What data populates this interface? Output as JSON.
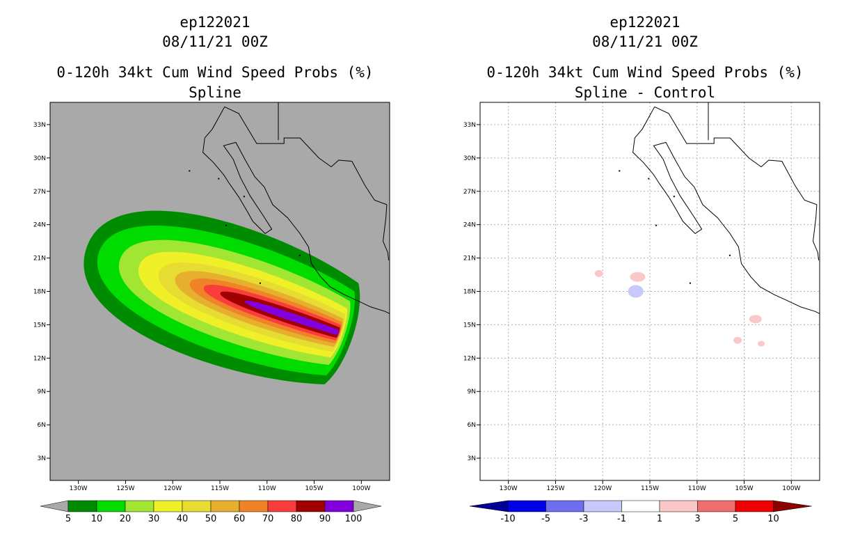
{
  "panels": [
    {
      "storm_id": "ep122021",
      "datetime": "08/11/21 00Z",
      "product": "0-120h 34kt Cum Wind Speed Probs (%)",
      "subtitle": "Spline",
      "background_color": "#A9A9A9",
      "colorbar": {
        "labels": [
          "5",
          "10",
          "20",
          "30",
          "40",
          "50",
          "60",
          "70",
          "80",
          "90",
          "100"
        ],
        "colors": [
          "#008C00",
          "#00DC00",
          "#A0E632",
          "#F0F028",
          "#E6DC32",
          "#E6AF2D",
          "#F08228",
          "#FA3C3C",
          "#A00000",
          "#8200DC"
        ],
        "end_color": "#A9A9A9"
      }
    },
    {
      "storm_id": "ep122021",
      "datetime": "08/11/21 00Z",
      "product": "0-120h 34kt Cum Wind Speed Probs (%)",
      "subtitle": "Spline - Control",
      "background_color": "#FFFFFF",
      "colorbar": {
        "labels": [
          "-10",
          "-5",
          "-3",
          "-1",
          "1",
          "3",
          "5",
          "10"
        ],
        "colors": [
          "#0000E6",
          "#6E6EF0",
          "#C8C8FA",
          "#FFFFFF",
          "#FAC8C8",
          "#F06E6E",
          "#F00000"
        ],
        "low_color": "#000096",
        "high_color": "#8C0000"
      }
    }
  ],
  "chart_data": [
    {
      "type": "heatmap",
      "title": "0-120h 34kt Cum Wind Speed Probs (%) - Spline",
      "x_ticks": [
        "130W",
        "125W",
        "120W",
        "115W",
        "110W",
        "105W",
        "100W"
      ],
      "y_ticks": [
        "3N",
        "6N",
        "9N",
        "12N",
        "15N",
        "18N",
        "21N",
        "24N",
        "27N",
        "30N",
        "33N"
      ],
      "xlim_deg_west": [
        133,
        97
      ],
      "ylim_deg_north": [
        1,
        35
      ],
      "field": "34-kt cumulative wind probability (%)",
      "contour_levels": [
        5,
        10,
        20,
        30,
        40,
        50,
        60,
        70,
        80,
        90,
        100
      ],
      "swath_axis": {
        "start": {
          "lon": 126,
          "lat": 21
        },
        "end": {
          "lon": 102.5,
          "lat": 14.3
        }
      },
      "max_probability_center": {
        "lon": 104,
        "lat": 14.5,
        "band": "90-100"
      }
    },
    {
      "type": "heatmap",
      "title": "0-120h 34kt Cum Wind Speed Probs (%) - Spline - Control",
      "x_ticks": [
        "130W",
        "125W",
        "120W",
        "115W",
        "110W",
        "105W",
        "100W"
      ],
      "y_ticks": [
        "3N",
        "6N",
        "9N",
        "12N",
        "15N",
        "18N",
        "21N",
        "24N",
        "27N",
        "30N",
        "33N"
      ],
      "xlim_deg_west": [
        133,
        97
      ],
      "ylim_deg_north": [
        1,
        35
      ],
      "field": "probability difference (%)",
      "contour_levels": [
        -10,
        -5,
        -3,
        -1,
        1,
        3,
        5,
        10
      ],
      "positive_patches": [
        {
          "lon": 116.3,
          "lat": 19.3,
          "band": "1-3"
        },
        {
          "lon": 120.4,
          "lat": 19.6,
          "band": "1-3"
        },
        {
          "lon": 103.8,
          "lat": 15.5,
          "band": "1-3"
        },
        {
          "lon": 103.2,
          "lat": 13.3,
          "band": "1-3"
        },
        {
          "lon": 105.7,
          "lat": 13.6,
          "band": "1-3"
        }
      ],
      "negative_patches": [
        {
          "lon": 116.5,
          "lat": 18.0,
          "band": "-1 to -3"
        }
      ]
    }
  ]
}
